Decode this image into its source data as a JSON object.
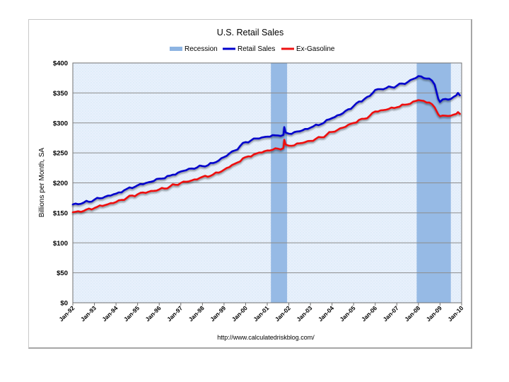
{
  "chart_data": {
    "type": "line",
    "title": "U.S. Retail Sales",
    "ylabel": "Billions per Month, SA",
    "xlabel": "",
    "source": "http://www.calculatedriskblog.com/",
    "xlim": [
      1992.0,
      2010.0
    ],
    "ylim": [
      0,
      400
    ],
    "grid": true,
    "legend_position": "top",
    "y_ticks": [
      0,
      50,
      100,
      150,
      200,
      250,
      300,
      350,
      400
    ],
    "y_tick_labels": [
      "$0",
      "$50",
      "$100",
      "$150",
      "$200",
      "$250",
      "$300",
      "$350",
      "$400"
    ],
    "x_tick_positions": [
      1992,
      1993,
      1994,
      1995,
      1996,
      1997,
      1998,
      1999,
      2000,
      2001,
      2002,
      2003,
      2004,
      2005,
      2006,
      2007,
      2008,
      2009,
      2010
    ],
    "x_tick_labels": [
      "Jan-92",
      "Jan-93",
      "Jan-94",
      "Jan-95",
      "Jan-96",
      "Jan-97",
      "Jan-98",
      "Jan-99",
      "Jan-00",
      "Jan-01",
      "Jan-02",
      "Jan-03",
      "Jan-04",
      "Jan-05",
      "Jan-06",
      "Jan-07",
      "Jan-08",
      "Jan-09",
      "Jan-10"
    ],
    "recessions": [
      {
        "name": "Recession",
        "start": 2001.17,
        "end": 2001.92
      },
      {
        "name": "Recession",
        "start": 2007.92,
        "end": 2009.5
      }
    ],
    "legend": [
      {
        "name": "Recession",
        "kind": "band",
        "color": "#8db4e2"
      },
      {
        "name": "Retail Sales",
        "kind": "line",
        "color": "#0000cc"
      },
      {
        "name": "Ex-Gasoline",
        "kind": "line",
        "color": "#ee1111"
      }
    ],
    "series": [
      {
        "name": "Retail Sales",
        "color": "#0000cc",
        "x": [
          1992.0,
          1992.5,
          1993.0,
          1993.5,
          1994.0,
          1994.5,
          1995.0,
          1995.5,
          1996.0,
          1996.5,
          1997.0,
          1997.5,
          1998.0,
          1998.5,
          1999.0,
          1999.5,
          2000.0,
          2000.5,
          2001.0,
          2001.5,
          2001.75,
          2001.79,
          2001.85,
          2002.0,
          2002.5,
          2003.0,
          2003.5,
          2004.0,
          2004.5,
          2005.0,
          2005.5,
          2005.75,
          2006.0,
          2006.5,
          2007.0,
          2007.5,
          2008.0,
          2008.5,
          2008.75,
          2008.92,
          2009.0,
          2009.25,
          2009.5,
          2009.75,
          2009.83,
          2009.92
        ],
        "values": [
          164,
          167,
          172,
          177,
          182,
          190,
          196,
          201,
          207,
          212,
          219,
          224,
          228,
          233,
          243,
          254,
          268,
          274,
          277,
          279,
          280,
          293,
          284,
          282,
          286,
          292,
          298,
          308,
          316,
          328,
          340,
          345,
          355,
          358,
          362,
          368,
          378,
          374,
          364,
          340,
          335,
          340,
          340,
          346,
          350,
          346
        ]
      },
      {
        "name": "Ex-Gasoline",
        "color": "#ee1111",
        "x": [
          1992.0,
          1992.5,
          1993.0,
          1993.5,
          1994.0,
          1994.5,
          1995.0,
          1995.5,
          1996.0,
          1996.5,
          1997.0,
          1997.5,
          1998.0,
          1998.5,
          1999.0,
          1999.5,
          2000.0,
          2000.5,
          2001.0,
          2001.5,
          2001.75,
          2001.79,
          2001.85,
          2002.0,
          2002.5,
          2003.0,
          2003.5,
          2004.0,
          2004.5,
          2005.0,
          2005.5,
          2005.75,
          2006.0,
          2006.5,
          2007.0,
          2007.5,
          2008.0,
          2008.5,
          2008.75,
          2008.92,
          2009.0,
          2009.25,
          2009.5,
          2009.75,
          2009.83,
          2009.92
        ],
        "values": [
          151,
          153,
          158,
          163,
          168,
          175,
          181,
          185,
          189,
          194,
          200,
          204,
          210,
          214,
          222,
          232,
          243,
          249,
          254,
          257,
          258,
          272,
          264,
          262,
          266,
          270,
          276,
          285,
          292,
          300,
          307,
          312,
          319,
          322,
          326,
          331,
          338,
          334,
          326,
          314,
          311,
          312,
          312,
          315,
          318,
          315
        ]
      }
    ]
  }
}
